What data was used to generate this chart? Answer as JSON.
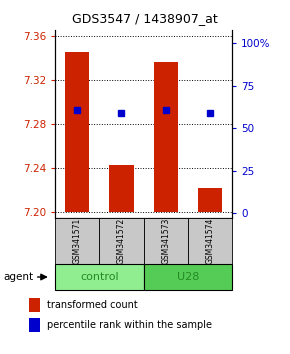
{
  "title": "GDS3547 / 1438907_at",
  "samples": [
    "GSM341571",
    "GSM341572",
    "GSM341573",
    "GSM341574"
  ],
  "bar_values": [
    7.345,
    7.243,
    7.336,
    7.222
  ],
  "bar_base": 7.2,
  "bar_color": "#CC2200",
  "percentile_values": [
    7.293,
    7.29,
    7.293,
    7.29
  ],
  "percentile_color": "#0000CC",
  "ylim_left": [
    7.195,
    7.365
  ],
  "ylim_right": [
    -2.5,
    107.5
  ],
  "yticks_left": [
    7.2,
    7.24,
    7.28,
    7.32,
    7.36
  ],
  "yticks_right": [
    0,
    25,
    50,
    75,
    100
  ],
  "ytick_labels_right": [
    "0",
    "25",
    "50",
    "75",
    "100%"
  ],
  "left_tick_color": "#CC2200",
  "right_tick_color": "#0000CC",
  "group_spans": [
    {
      "label": "control",
      "start": 0,
      "end": 1,
      "color": "#90EE90"
    },
    {
      "label": "U28",
      "start": 2,
      "end": 3,
      "color": "#55CC55"
    }
  ],
  "agent_label": "agent",
  "legend_bar_label": "transformed count",
  "legend_pct_label": "percentile rank within the sample",
  "bar_width": 0.55
}
